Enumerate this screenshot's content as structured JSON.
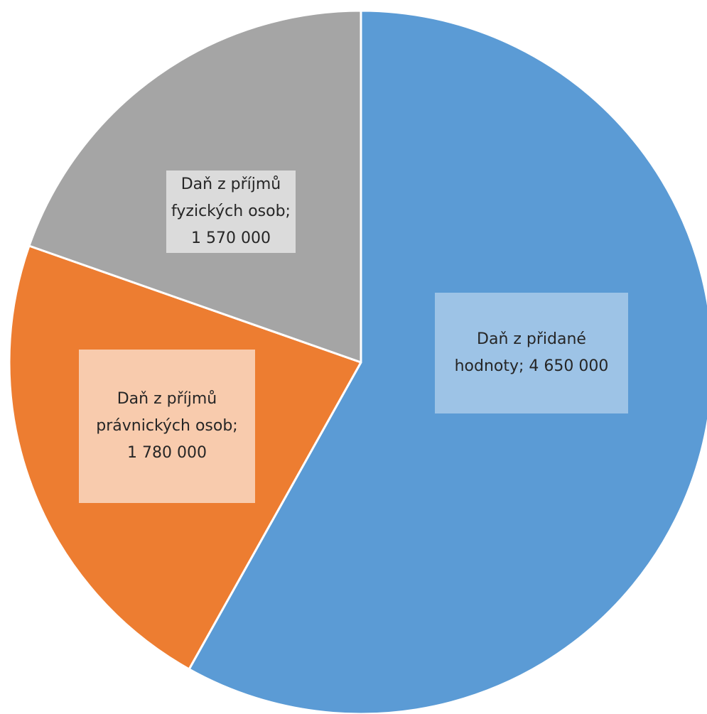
{
  "chart_data": {
    "type": "pie",
    "start_angle_deg": 0,
    "direction": "clockwise",
    "slices": [
      {
        "id": "dph",
        "label_lines": [
          "Daň z přidané",
          "hodnoty; 4 650 000"
        ],
        "value": 4650000,
        "color": "#5B9BD5",
        "label_bg": "#9DC3E6"
      },
      {
        "id": "dppo",
        "label_lines": [
          "Daň z příjmů",
          "právnických osob;",
          "1 780 000"
        ],
        "value": 1780000,
        "color": "#ED7D31",
        "label_bg": "#F8CBAD"
      },
      {
        "id": "dpfo",
        "label_lines": [
          "Daň z příjmů",
          "fyzických osob;",
          "1 570 000"
        ],
        "value": 1570000,
        "color": "#A5A5A5",
        "label_bg": "#DBDBDB"
      }
    ]
  }
}
